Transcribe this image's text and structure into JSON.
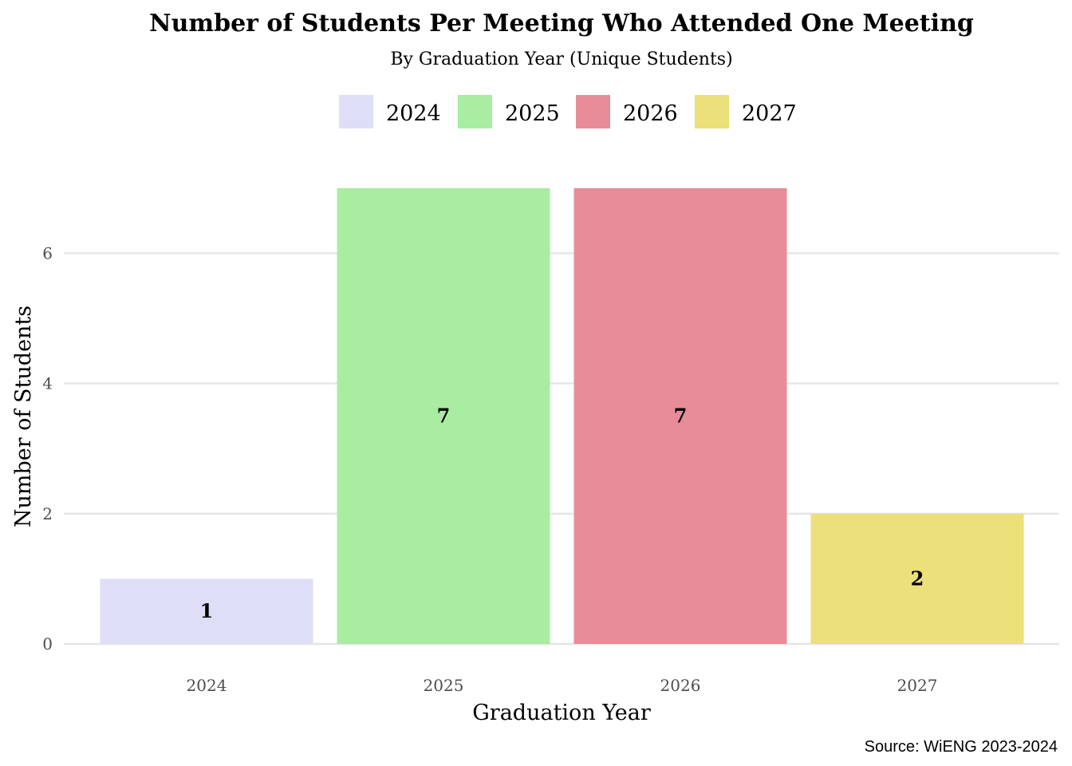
{
  "chart_data": {
    "type": "bar",
    "title": "Number of Students Per Meeting Who Attended One Meeting",
    "subtitle": "By Graduation Year (Unique Students)",
    "xlabel": "Graduation Year",
    "ylabel": "Number of Students",
    "caption": "Source: WiENG 2023-2024",
    "categories": [
      "2024",
      "2025",
      "2026",
      "2027"
    ],
    "values": [
      1,
      7,
      7,
      2
    ],
    "colors": [
      "#dedef7",
      "#a8eda2",
      "#e88c9a",
      "#ebe07a"
    ],
    "ylim": [
      0,
      7
    ],
    "yticks": [
      0,
      2,
      4,
      6
    ],
    "grid": true,
    "legend": {
      "position": "top",
      "entries": [
        "2024",
        "2025",
        "2026",
        "2027"
      ]
    }
  }
}
